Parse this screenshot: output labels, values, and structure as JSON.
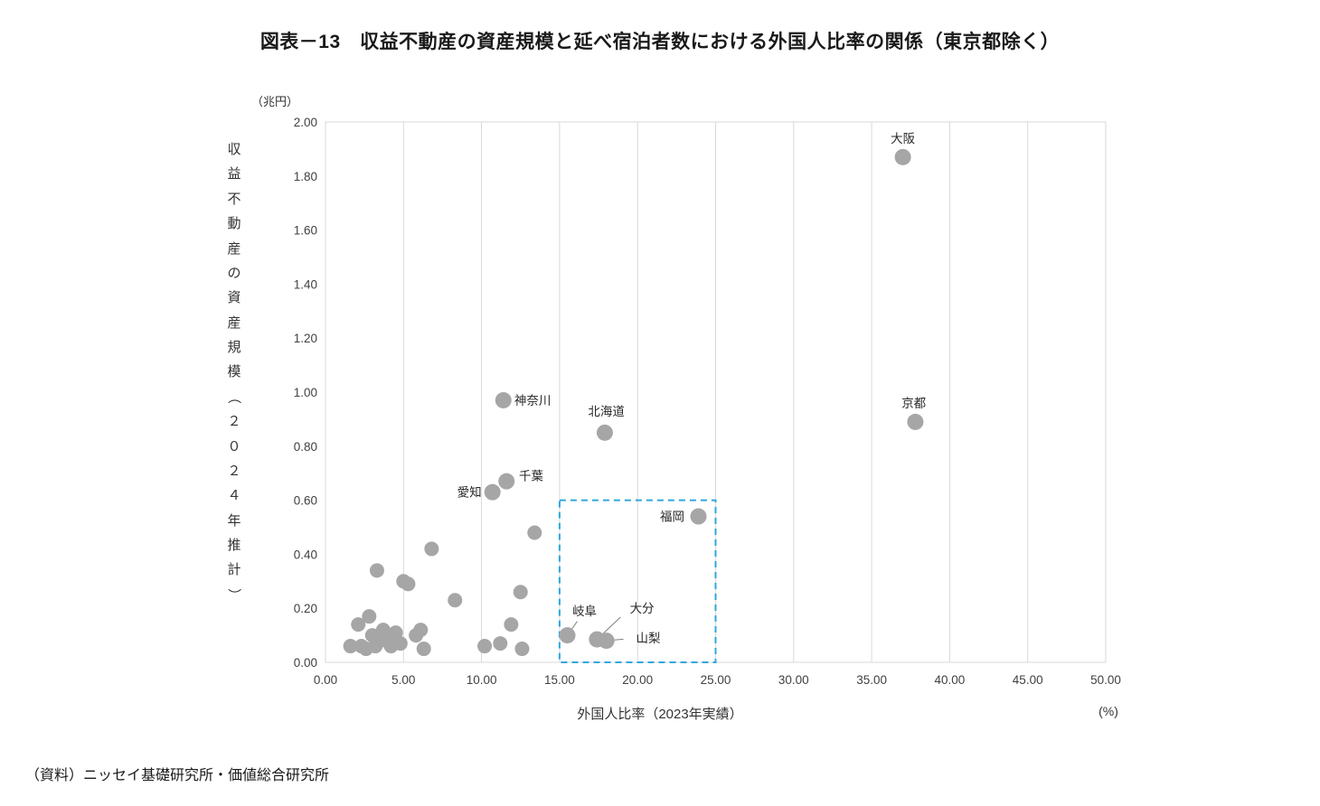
{
  "page": {
    "source": "（資料）ニッセイ基礎研究所・価値総合研究所"
  },
  "chart_data": {
    "type": "scatter",
    "title": "図表－13　収益不動産の資産規模と延べ宿泊者数における外国人比率の関係（東京都除く）",
    "xlabel": "外国人比率（2023年実績）",
    "xunit": "(%)",
    "ylabel_vertical": "収益不動産の資産規模（２０２４年推計）",
    "yunit": "（兆円）",
    "xlim": [
      0,
      50
    ],
    "ylim": [
      0,
      2.0
    ],
    "xticks": [
      0,
      5,
      10,
      15,
      20,
      25,
      30,
      35,
      40,
      45,
      50
    ],
    "xtick_labels": [
      "0.00",
      "5.00",
      "10.00",
      "15.00",
      "20.00",
      "25.00",
      "30.00",
      "35.00",
      "40.00",
      "45.00",
      "50.00"
    ],
    "yticks": [
      0,
      0.2,
      0.4,
      0.6,
      0.8,
      1.0,
      1.2,
      1.4,
      1.6,
      1.8,
      2.0
    ],
    "ytick_labels": [
      "0.00",
      "0.20",
      "0.40",
      "0.60",
      "0.80",
      "1.00",
      "1.20",
      "1.40",
      "1.60",
      "1.80",
      "2.00"
    ],
    "grid": "vertical-only",
    "grid_color": "#d9d9d9",
    "marker_color": "#a6a6a6",
    "leader_color": "#7f7f7f",
    "highlight_box": {
      "x0": 15,
      "x1": 25,
      "y0": 0,
      "y1": 0.6,
      "color": "#2fa8dc",
      "style": "dashed"
    },
    "labeled_points": [
      {
        "label": "大阪",
        "x": 37.0,
        "y": 1.87,
        "lx": 37.0,
        "ly": 1.94,
        "anchor": "middle",
        "leader": false
      },
      {
        "label": "京都",
        "x": 37.8,
        "y": 0.89,
        "lx": 37.7,
        "ly": 0.96,
        "anchor": "middle",
        "leader": false
      },
      {
        "label": "神奈川",
        "x": 11.4,
        "y": 0.97,
        "lx": 12.1,
        "ly": 0.97,
        "anchor": "start",
        "leader": false
      },
      {
        "label": "北海道",
        "x": 17.9,
        "y": 0.85,
        "lx": 18.0,
        "ly": 0.93,
        "anchor": "middle",
        "leader": false
      },
      {
        "label": "千葉",
        "x": 11.6,
        "y": 0.67,
        "lx": 12.4,
        "ly": 0.69,
        "anchor": "start",
        "leader": false
      },
      {
        "label": "愛知",
        "x": 10.7,
        "y": 0.63,
        "lx": 10.0,
        "ly": 0.63,
        "anchor": "end",
        "leader": false
      },
      {
        "label": "福岡",
        "x": 23.9,
        "y": 0.54,
        "lx": 23.0,
        "ly": 0.54,
        "anchor": "end",
        "leader": false
      },
      {
        "label": "岐阜",
        "x": 15.5,
        "y": 0.1,
        "lx": 16.6,
        "ly": 0.19,
        "anchor": "middle",
        "leader": true
      },
      {
        "label": "大分",
        "x": 17.4,
        "y": 0.085,
        "lx": 19.5,
        "ly": 0.2,
        "anchor": "start",
        "leader": true
      },
      {
        "label": "山梨",
        "x": 18.0,
        "y": 0.08,
        "lx": 19.9,
        "ly": 0.09,
        "anchor": "start",
        "leader": true
      }
    ],
    "points": [
      [
        1.6,
        0.06
      ],
      [
        2.1,
        0.14
      ],
      [
        2.3,
        0.06
      ],
      [
        2.6,
        0.05
      ],
      [
        2.8,
        0.17
      ],
      [
        3.0,
        0.1
      ],
      [
        3.2,
        0.06
      ],
      [
        3.3,
        0.34
      ],
      [
        3.5,
        0.08
      ],
      [
        3.7,
        0.12
      ],
      [
        3.9,
        0.09
      ],
      [
        4.2,
        0.06
      ],
      [
        4.5,
        0.11
      ],
      [
        4.8,
        0.07
      ],
      [
        5.0,
        0.3
      ],
      [
        5.3,
        0.29
      ],
      [
        5.8,
        0.1
      ],
      [
        6.1,
        0.12
      ],
      [
        6.3,
        0.05
      ],
      [
        6.8,
        0.42
      ],
      [
        8.3,
        0.23
      ],
      [
        10.2,
        0.06
      ],
      [
        11.2,
        0.07
      ],
      [
        11.9,
        0.14
      ],
      [
        12.5,
        0.26
      ],
      [
        12.6,
        0.05
      ],
      [
        13.4,
        0.48
      ]
    ]
  }
}
